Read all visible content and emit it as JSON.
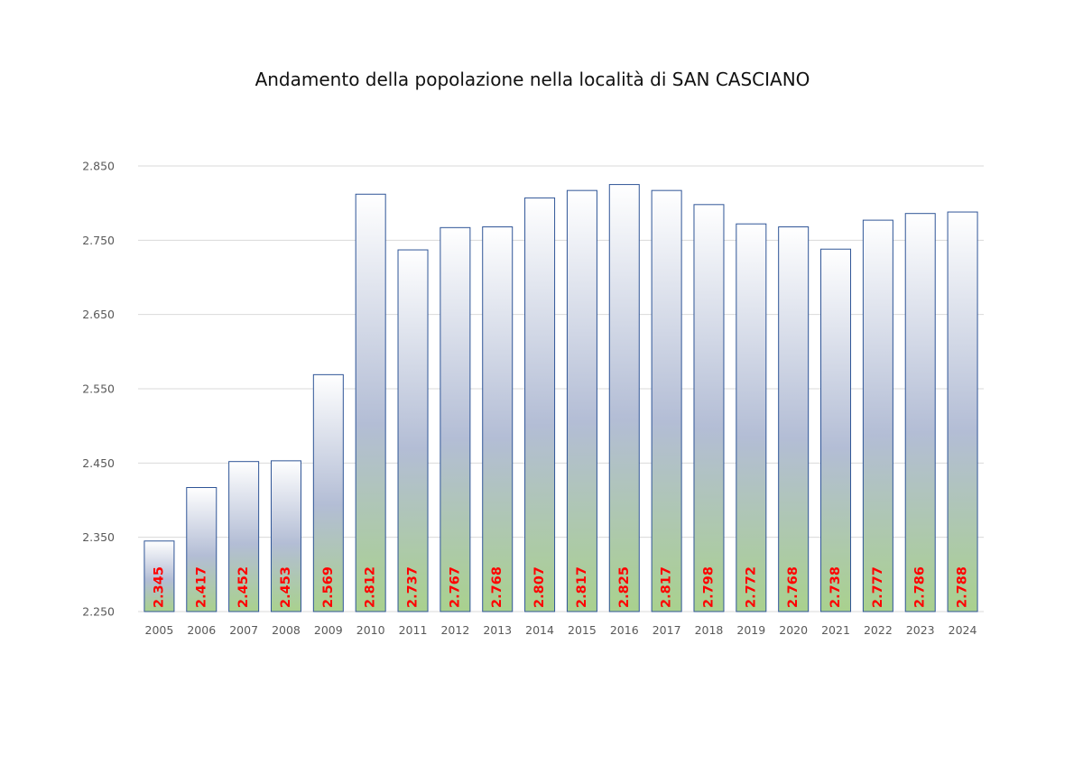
{
  "chart_data": {
    "type": "bar",
    "title": "Andamento della popolazione nella località di SAN CASCIANO",
    "xlabel": "",
    "ylabel": "",
    "categories": [
      "2005",
      "2006",
      "2007",
      "2008",
      "2009",
      "2010",
      "2011",
      "2012",
      "2013",
      "2014",
      "2015",
      "2016",
      "2017",
      "2018",
      "2019",
      "2020",
      "2021",
      "2022",
      "2023",
      "2024"
    ],
    "values": [
      2345,
      2417,
      2452,
      2453,
      2569,
      2812,
      2737,
      2767,
      2768,
      2807,
      2817,
      2825,
      2817,
      2798,
      2772,
      2768,
      2738,
      2777,
      2786,
      2788
    ],
    "value_labels": [
      "2.345",
      "2.417",
      "2.452",
      "2.453",
      "2.569",
      "2.812",
      "2.737",
      "2.767",
      "2.768",
      "2.807",
      "2.817",
      "2.825",
      "2.817",
      "2.798",
      "2.772",
      "2.768",
      "2.738",
      "2.777",
      "2.786",
      "2.788"
    ],
    "ylim": [
      2250,
      2850
    ],
    "yticks": [
      2250,
      2350,
      2450,
      2550,
      2650,
      2750,
      2850
    ],
    "ytick_labels": [
      "2.250",
      "2.350",
      "2.450",
      "2.550",
      "2.650",
      "2.750",
      "2.850"
    ],
    "grid": true,
    "legend": "none",
    "colors": {
      "bar_top": "#ffffff",
      "bar_mid": "#b3bdd5",
      "bar_bottom": "#a9d18e",
      "bar_border": "#2f5597",
      "data_label": "#ff0000",
      "gridline": "#d9d9d9",
      "tick_text": "#595959"
    }
  }
}
